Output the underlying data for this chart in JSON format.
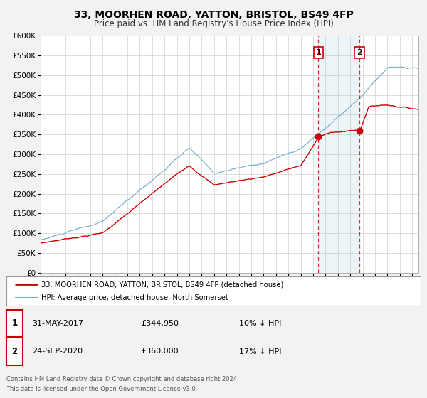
{
  "title": "33, MOORHEN ROAD, YATTON, BRISTOL, BS49 4FP",
  "subtitle": "Price paid vs. HM Land Registry's House Price Index (HPI)",
  "ylim": [
    0,
    600000
  ],
  "yticks": [
    0,
    50000,
    100000,
    150000,
    200000,
    250000,
    300000,
    350000,
    400000,
    450000,
    500000,
    550000,
    600000
  ],
  "xlim_start": 1995.0,
  "xlim_end": 2025.5,
  "bg_color": "#f2f2f2",
  "plot_bg_color": "#ffffff",
  "red_color": "#cc0000",
  "blue_color": "#7bafd4",
  "marker1_date": 2017.42,
  "marker1_value": 344950,
  "marker2_date": 2020.73,
  "marker2_value": 360000,
  "legend_label_red": "33, MOORHEN ROAD, YATTON, BRISTOL, BS49 4FP (detached house)",
  "legend_label_blue": "HPI: Average price, detached house, North Somerset",
  "annotation1_date": "31-MAY-2017",
  "annotation1_price": "£344,950",
  "annotation1_hpi": "10% ↓ HPI",
  "annotation2_date": "24-SEP-2020",
  "annotation2_price": "£360,000",
  "annotation2_hpi": "17% ↓ HPI",
  "footer_line1": "Contains HM Land Registry data © Crown copyright and database right 2024.",
  "footer_line2": "This data is licensed under the Open Government Licence v3.0."
}
